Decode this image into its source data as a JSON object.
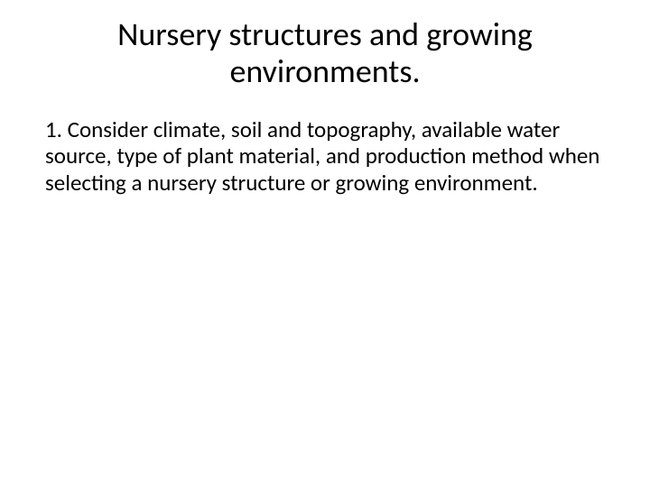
{
  "slide": {
    "title": "Nursery structures and growing environments.",
    "body": "1.  Consider climate, soil and topography, available water source, type of plant material, and production method when selecting a nursery structure or growing environment.",
    "background_color": "#ffffff",
    "text_color": "#000000",
    "title_fontsize": 36,
    "body_fontsize": 25,
    "font_family": "Calibri"
  }
}
